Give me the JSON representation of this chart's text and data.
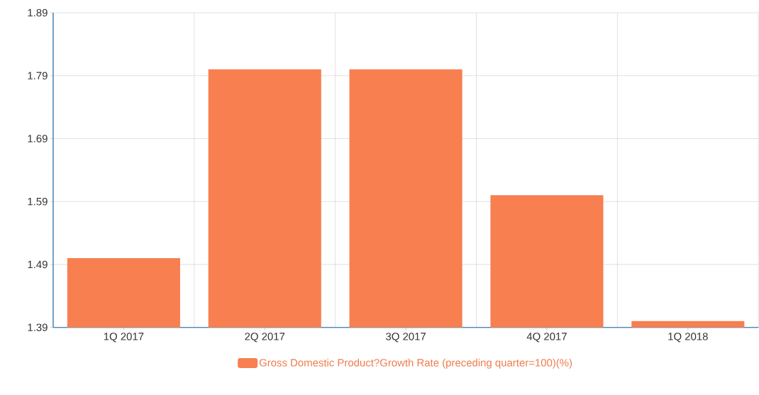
{
  "chart_data": {
    "type": "bar",
    "categories": [
      "1Q 2017",
      "2Q 2017",
      "3Q 2017",
      "4Q 2017",
      "1Q 2018"
    ],
    "series": [
      {
        "name": "Gross Domestic Product?Growth Rate (preceding quarter=100)(%)",
        "color": "#f77f50",
        "values": [
          1.5,
          1.8,
          1.8,
          1.6,
          1.4
        ]
      }
    ],
    "ylim": [
      1.39,
      1.89
    ],
    "yticks": [
      1.39,
      1.49,
      1.59,
      1.69,
      1.79,
      1.89
    ],
    "grid": true,
    "legend": "bottom"
  }
}
